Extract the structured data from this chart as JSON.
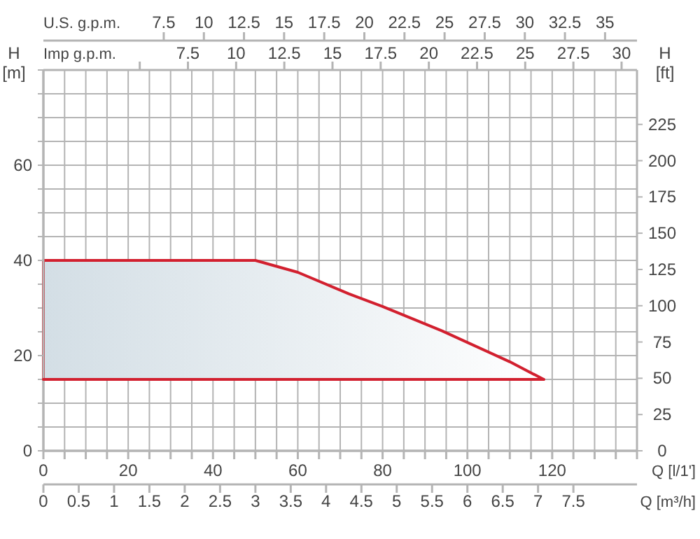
{
  "chart_data": [
    {
      "type": "line",
      "xlabel": "Q [l/1']",
      "ylabel": "H [m]",
      "y2label": "H [ft]",
      "x2label": "U.S. g.p.m.",
      "x": [
        0,
        0,
        50,
        60,
        72,
        80,
        94,
        110,
        118
      ],
      "series": [
        {
          "color": "#d2202f",
          "values": [
            15,
            40,
            40,
            37.5,
            33,
            30.3,
            25.2,
            18.7,
            15
          ]
        }
      ],
      "xlim": [
        0,
        140
      ],
      "xticks": [
        0,
        {
          "value": 5,
          "label": null
        },
        {
          "value": 10,
          "label": null
        },
        {
          "value": 15,
          "label": null
        },
        20,
        {
          "value": 25,
          "label": null
        },
        {
          "value": 30,
          "label": null
        },
        {
          "value": 35,
          "label": null
        },
        40,
        {
          "value": 45,
          "label": null
        },
        {
          "value": 50,
          "label": null
        },
        {
          "value": 55,
          "label": null
        },
        60,
        {
          "value": 65,
          "label": null
        },
        {
          "value": 70,
          "label": null
        },
        {
          "value": 75,
          "label": null
        },
        80,
        {
          "value": 85,
          "label": null
        },
        {
          "value": 90,
          "label": null
        },
        {
          "value": 95,
          "label": null
        },
        100,
        {
          "value": 105,
          "label": null
        },
        {
          "value": 110,
          "label": null
        },
        {
          "value": 115,
          "label": null
        },
        120,
        {
          "value": 125,
          "label": null
        },
        {
          "value": 130,
          "label": null
        },
        {
          "value": 135,
          "label": null
        },
        {
          "value": 140,
          "label": null
        }
      ],
      "ylim": [
        0,
        80
      ],
      "yticks": [
        0,
        {
          "value": 5,
          "label": null
        },
        {
          "value": 10,
          "label": null
        },
        {
          "value": 15,
          "label": null
        },
        20,
        {
          "value": 25,
          "label": null
        },
        {
          "value": 30,
          "label": null
        },
        {
          "value": 35,
          "label": null
        },
        40,
        {
          "value": 45,
          "label": null
        },
        {
          "value": 50,
          "label": null
        },
        {
          "value": 55,
          "label": null
        },
        60,
        {
          "value": 65,
          "label": null
        },
        {
          "value": 70,
          "label": null
        },
        {
          "value": 75,
          "label": null
        },
        {
          "value": 80,
          "label": null
        }
      ],
      "y2lim": [
        0,
        262.5
      ],
      "y2ticks": [
        0,
        25,
        50,
        75,
        100,
        125,
        150,
        175,
        200,
        225
      ],
      "x2lim": [
        0,
        36.99
      ],
      "x2ticks": [
        7.5,
        10,
        12.5,
        15,
        17.5,
        20,
        22.5,
        25,
        27.5,
        30,
        32.5,
        35
      ],
      "grid": true
    },
    {
      "type": "line",
      "xlabel": "Q [m³/h]",
      "x2label": "Imp g.p.m.",
      "x": [
        0,
        7.08
      ],
      "series": [
        {
          "color": "#d2202f",
          "values": [
            15,
            15
          ]
        }
      ],
      "xlim": [
        0,
        8.4
      ],
      "xticks": [
        0,
        0.5,
        1,
        1.5,
        2,
        2.5,
        3,
        3.5,
        4,
        4.5,
        5,
        5.5,
        6,
        6.5,
        7,
        7.5
      ],
      "x2lim": [
        0,
        30.8
      ],
      "x2ticks": [
        {
          "value": 5,
          "label": null
        },
        7.5,
        10,
        12.5,
        15,
        17.5,
        20,
        22.5,
        25,
        27.5,
        30
      ],
      "ylim": [
        0,
        80
      ],
      "yticks": [
        0,
        20,
        40,
        60
      ],
      "tick_labels": "x"
    }
  ]
}
